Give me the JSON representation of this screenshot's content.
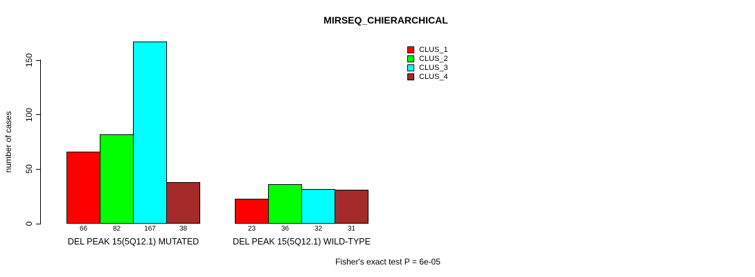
{
  "chart_data": {
    "type": "bar",
    "title": "MIRSEQ_CHIERARCHICAL",
    "xlabel": "",
    "ylabel": "number of cases",
    "categories": [
      "DEL PEAK 15(5Q12.1) MUTATED",
      "DEL PEAK 15(5Q12.1) WILD-TYPE"
    ],
    "series": [
      {
        "name": "CLUS_1",
        "color": "#ff0000",
        "values": [
          66,
          23
        ]
      },
      {
        "name": "CLUS_2",
        "color": "#00ff00",
        "values": [
          82,
          36
        ]
      },
      {
        "name": "CLUS_3",
        "color": "#00ffff",
        "values": [
          167,
          32
        ]
      },
      {
        "name": "CLUS_4",
        "color": "#a52a2a",
        "values": [
          38,
          31
        ]
      }
    ],
    "bar_value_labels": [
      [
        66,
        82,
        167,
        38
      ],
      [
        23,
        36,
        32,
        31
      ]
    ],
    "yticks": [
      0,
      50,
      100,
      150
    ],
    "ylim": [
      0,
      150
    ],
    "grid": false,
    "legend_position": "top-right",
    "annotation": "Fisher's exact test P = 6e-05",
    "colors": {
      "background": "#ffffff",
      "axis": "#000000",
      "text": "#000000"
    }
  }
}
